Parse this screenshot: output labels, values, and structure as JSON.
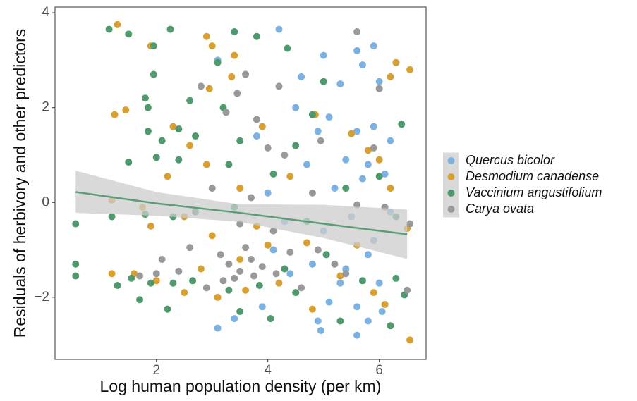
{
  "chart_data": {
    "type": "scatter",
    "x_label": "Log human population density (per km)",
    "y_label": "Residuals of herbivory and other predictors",
    "xlim": [
      0.18,
      6.84
    ],
    "ylim": [
      -3.31,
      4.12
    ],
    "xticks": [
      2,
      4,
      6
    ],
    "yticks": [
      {
        "value": -2,
        "label": "−2"
      },
      0,
      2,
      4
    ],
    "legend_position": "right",
    "fit": {
      "color": "#5a9e78",
      "band_color": "#cccccc",
      "x": [
        0.55,
        2,
        3.5,
        5,
        6.5
      ],
      "y": [
        0.22,
        -0.02,
        -0.22,
        -0.45,
        -0.67
      ],
      "lower": [
        -0.22,
        -0.28,
        -0.41,
        -0.75,
        -1.19
      ],
      "upper": [
        0.67,
        0.22,
        -0.04,
        -0.05,
        -0.15
      ]
    },
    "series": [
      {
        "name": "Quercus bicolor",
        "color": "#7bb1e3",
        "x": [
          4.2,
          5.0,
          5.6,
          5.9,
          6.3,
          3.6,
          4.6,
          5.3,
          5.7,
          6.0,
          3.1,
          4.5,
          5.1,
          5.6,
          5.9,
          6.2,
          3.8,
          4.9,
          5.4,
          5.8,
          6.1,
          4.7,
          5.2,
          5.7,
          4.3,
          5.0,
          5.5,
          5.9,
          6.2,
          4.1,
          4.8,
          5.4,
          5.8,
          6.0,
          4.5,
          5.1,
          5.6,
          5.8,
          5.6,
          4.9,
          3.9,
          3.1,
          4.95,
          6.05,
          4.4,
          3.4,
          5.3,
          4.0
        ],
        "values": [
          3.65,
          3.1,
          3.2,
          3.3,
          2.95,
          2.7,
          2.65,
          2.5,
          2.9,
          2.55,
          3.0,
          2.0,
          1.8,
          1.5,
          1.6,
          1.3,
          1.4,
          1.5,
          0.9,
          0.8,
          0.6,
          0.8,
          0.3,
          0.5,
          -0.4,
          -0.6,
          -0.3,
          -0.8,
          -0.2,
          -1.0,
          -1.3,
          -1.4,
          -1.1,
          -1.7,
          -1.9,
          -2.1,
          -2.2,
          -2.5,
          -2.8,
          -2.5,
          -2.2,
          -2.65,
          -2.7,
          -2.3,
          -1.5,
          -2.45,
          -1.7,
          0.2
        ]
      },
      {
        "name": "Desmodium canadense",
        "color": "#d9a031",
        "x": [
          1.3,
          2.9,
          1.9,
          3.0,
          3.4,
          6.3,
          6.55,
          6.2,
          3.35,
          2.95,
          1.25,
          1.45,
          2.3,
          2.6,
          3.9,
          4.85,
          5.5,
          5.8,
          6.0,
          2.2,
          2.9,
          3.5,
          4.4,
          6.2,
          1.2,
          1.75,
          2.5,
          3.0,
          3.8,
          4.7,
          5.6,
          6.5,
          1.2,
          1.6,
          2.0,
          2.5,
          3.1,
          3.6,
          4.2,
          4.8,
          5.3,
          5.9,
          6.1,
          6.55,
          2.8,
          3.5,
          4.0,
          1.9
        ],
        "values": [
          3.75,
          3.5,
          3.3,
          3.3,
          3.1,
          2.95,
          2.8,
          2.65,
          2.65,
          2.4,
          1.85,
          1.95,
          1.6,
          1.2,
          1.6,
          1.85,
          1.45,
          1.1,
          0.9,
          0.55,
          0.8,
          0.3,
          0.55,
          0.3,
          0.05,
          -0.1,
          -0.3,
          -0.7,
          -0.5,
          -0.85,
          -0.9,
          -0.55,
          -1.5,
          -1.5,
          -1.65,
          -1.9,
          -2.0,
          -1.85,
          -1.7,
          -2.25,
          -1.55,
          -1.9,
          -2.15,
          -2.9,
          -1.4,
          -1.2,
          -0.9,
          -0.5
        ]
      },
      {
        "name": "Vaccinium angustifolium",
        "color": "#4f9a6c",
        "x": [
          1.15,
          1.5,
          1.95,
          2.25,
          3.4,
          3.8,
          3.1,
          4.35,
          1.95,
          2.6,
          1.8,
          1.85,
          2.4,
          3.2,
          4.8,
          5.0,
          1.85,
          2.1,
          2.7,
          3.5,
          4.5,
          6.4,
          1.5,
          2.0,
          2.4,
          3.3,
          4.1,
          5.4,
          6.0,
          0.55,
          1.2,
          1.8,
          2.3,
          2.7,
          3.4,
          4.7,
          6.3,
          0.55,
          0.55,
          1.3,
          1.55,
          1.9,
          2.3,
          2.65,
          3.3,
          3.85,
          4.5,
          5.7,
          6.3,
          6.45,
          2.2,
          3.5,
          4.05,
          6.2,
          5.3,
          1.7,
          4.3,
          5.05
        ],
        "values": [
          3.65,
          3.55,
          3.3,
          3.65,
          3.6,
          3.5,
          2.95,
          3.25,
          2.7,
          2.15,
          2.2,
          2.0,
          1.55,
          2.0,
          1.85,
          2.55,
          1.5,
          1.3,
          1.4,
          1.3,
          1.2,
          1.65,
          0.85,
          0.95,
          0.9,
          0.8,
          0.6,
          0.3,
          0.55,
          -0.45,
          -0.3,
          -0.25,
          -0.3,
          -0.2,
          -0.1,
          -0.4,
          -0.3,
          -1.3,
          -1.55,
          -1.75,
          -1.6,
          -1.7,
          -1.7,
          -1.65,
          -1.85,
          -1.75,
          -1.9,
          -1.65,
          -1.6,
          -1.95,
          -2.25,
          -2.3,
          -2.45,
          -2.6,
          -2.5,
          -2.05,
          -1.4,
          -1.1
        ]
      },
      {
        "name": "Carya ovata",
        "color": "#999999",
        "x": [
          5.6,
          3.6,
          2.8,
          3.25,
          3.45,
          4.2,
          6.0,
          3.8,
          4.0,
          4.95,
          5.9,
          4.3,
          3.0,
          3.7,
          4.8,
          5.6,
          6.1,
          3.5,
          4.1,
          2.1,
          2.6,
          3.15,
          3.3,
          3.5,
          3.7,
          3.9,
          4.15,
          4.4,
          4.9,
          5.2,
          1.7,
          2.0,
          2.9,
          3.2,
          3.4,
          3.75,
          4.6,
          5.4,
          6.5,
          6.55,
          3.6,
          2.4
        ],
        "values": [
          3.6,
          2.7,
          2.45,
          1.9,
          2.3,
          2.45,
          2.4,
          1.75,
          1.15,
          1.3,
          1.15,
          1.0,
          0.3,
          0.1,
          0.2,
          -0.05,
          -0.1,
          -0.45,
          -0.6,
          -1.2,
          -0.95,
          -1.1,
          -1.3,
          -1.45,
          -1.2,
          -1.35,
          -1.5,
          -1.05,
          -1.0,
          -1.3,
          -1.55,
          -1.5,
          -1.8,
          -1.65,
          -1.6,
          -1.55,
          -1.8,
          -1.5,
          -1.85,
          -0.45,
          -0.95,
          -1.45
        ]
      }
    ]
  }
}
